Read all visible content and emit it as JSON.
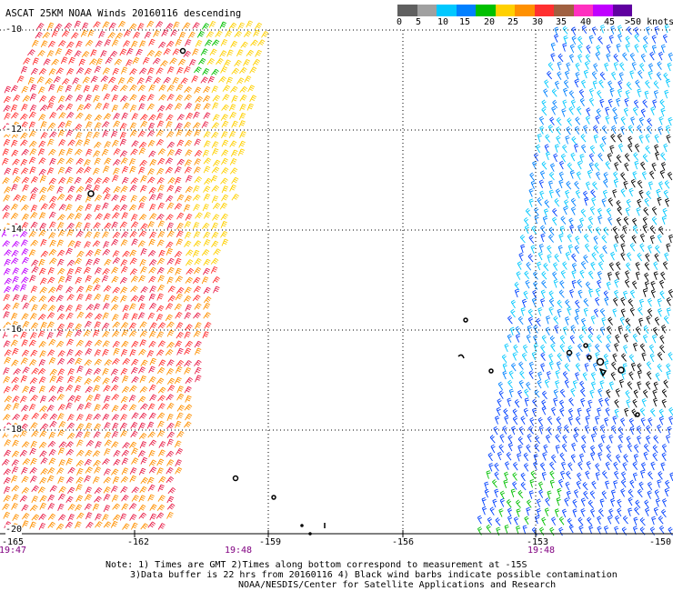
{
  "title": "ASCAT 25KM NOAA Winds 20160116 descending",
  "speed_scale": {
    "labels": [
      "0",
      "5",
      "10",
      "15",
      "20",
      "25",
      "30",
      "35",
      "40",
      "45"
    ],
    "unit": ">50 knots",
    "colors": [
      "#606060",
      "#a0a0a0",
      "#00c8ff",
      "#0080ff",
      "#00c000",
      "#ffd000",
      "#ff9000",
      "#ff3030",
      "#a06040",
      "#ff30c0",
      "#c000ff",
      "#6000a0"
    ]
  },
  "latitude_labels": [
    "-10",
    "-12",
    "-14",
    "-16",
    "-18",
    "-20"
  ],
  "longitude_labels": [
    "-165",
    "-162",
    "-159",
    "-156",
    "-153",
    "-150"
  ],
  "time_labels": [
    "19:47",
    "19:48",
    "19:48"
  ],
  "notes": [
    "Note: 1) Times are GMT 2)Times along bottom correspond to measurement at -15S",
    "3)Data buffer is 22 hrs from 20160116 4) Black wind barbs indicate possible contamination",
    "NOAA/NESDIS/Center for Satellite Applications and Research"
  ],
  "swaths": [
    {
      "name": "west-swath",
      "colors": [
        "#ff9000",
        "#ff3030",
        "#ffd000",
        "#e8204a",
        "#c000ff",
        "#00c000",
        "#000000"
      ]
    },
    {
      "name": "east-swath",
      "colors": [
        "#0040ff",
        "#00c8ff",
        "#0080ff",
        "#000000",
        "#00c000"
      ]
    }
  ]
}
